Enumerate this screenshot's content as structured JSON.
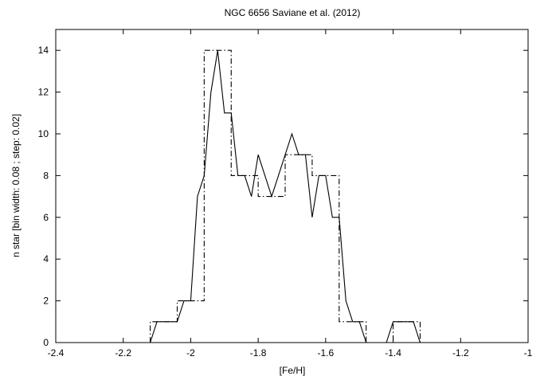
{
  "chart_data": {
    "type": "line",
    "title": "NGC 6656    Saviane et al. (2012)",
    "xlabel": "[Fe/H]",
    "ylabel": "n star [bin width: 0.08 ; step: 0.02]",
    "xlim": [
      -2.4,
      -1.0
    ],
    "ylim": [
      0,
      15
    ],
    "xticks": [
      "-2.4",
      "-2.2",
      "-2",
      "-1.8",
      "-1.6",
      "-1.4",
      "-1.2",
      "-1"
    ],
    "yticks": [
      "0",
      "2",
      "4",
      "6",
      "8",
      "10",
      "12",
      "14"
    ],
    "grid": false,
    "series": [
      {
        "style": "solid",
        "x": [
          -2.12,
          -2.1,
          -2.08,
          -2.06,
          -2.04,
          -2.02,
          -2.0,
          -1.98,
          -1.96,
          -1.94,
          -1.92,
          -1.9,
          -1.88,
          -1.86,
          -1.84,
          -1.82,
          -1.8,
          -1.78,
          -1.76,
          -1.74,
          -1.72,
          -1.7,
          -1.68,
          -1.66,
          -1.64,
          -1.62,
          -1.6,
          -1.58,
          -1.56,
          -1.54,
          -1.52,
          -1.5,
          -1.48,
          -1.46,
          -1.44,
          -1.42,
          -1.4,
          -1.38,
          -1.36,
          -1.34,
          -1.32
        ],
        "y": [
          0,
          1,
          1,
          1,
          1,
          2,
          2,
          7,
          8,
          12,
          14,
          11,
          11,
          8,
          8,
          7,
          9,
          8,
          7,
          8,
          9,
          10,
          9,
          9,
          6,
          8,
          8,
          6,
          6,
          2,
          1,
          1,
          0,
          0,
          0,
          0,
          1,
          1,
          1,
          1,
          0
        ]
      },
      {
        "style": "dash-dot",
        "step_edges": [
          -2.12,
          -2.04,
          -1.96,
          -1.88,
          -1.8,
          -1.72,
          -1.64,
          -1.56,
          -1.48,
          -1.4,
          -1.32
        ],
        "values": [
          1,
          2,
          14,
          8,
          7,
          9,
          8,
          1,
          0,
          1
        ]
      }
    ]
  }
}
